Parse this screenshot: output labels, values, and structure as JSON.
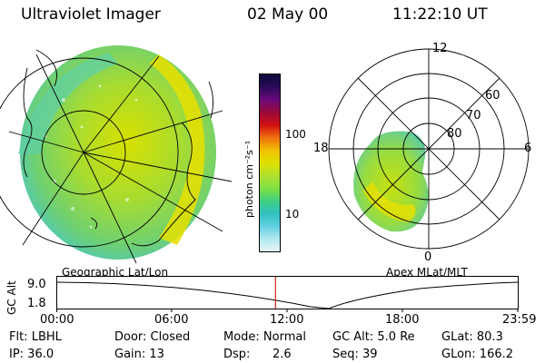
{
  "header": {
    "instrument": "Ultraviolet Imager",
    "date": "02 May 00",
    "time": "11:22:10 UT"
  },
  "left_panel": {
    "caption": "Geographic Lat/Lon"
  },
  "right_panel": {
    "caption": "Apex MLat/MLT",
    "mlt_labels": {
      "top": "12",
      "left": "18",
      "right": "6",
      "bottom": "0"
    },
    "lat_labels": [
      "60",
      "70",
      "80"
    ]
  },
  "colorbar": {
    "unit_label": "photon cm⁻²s⁻¹",
    "ticks": [
      "100",
      "10"
    ],
    "colors": [
      "#0a0a3a",
      "#2a0a5a",
      "#6a0a7a",
      "#9a0a3a",
      "#d01010",
      "#f07010",
      "#f0c000",
      "#e0e000",
      "#b0e030",
      "#80e040",
      "#40d080",
      "#30c0c0",
      "#60d0e0",
      "#b0e8f0",
      "#e8f4f8"
    ]
  },
  "altitude_strip": {
    "axis_title": "GC Alt",
    "y_ticks": [
      "9.0",
      "1.8"
    ],
    "x_ticks": [
      "00:00",
      "06:00",
      "12:00",
      "18:00",
      "23:59"
    ],
    "current_time_fraction": 0.474
  },
  "info": {
    "filter": "Flt: LBHL",
    "ip": "IP: 36.0",
    "door": "Door: Closed",
    "gain": "Gain: 13",
    "mode": "Mode: Normal",
    "dsp_label": "Dsp:",
    "dsp_value": "2.6",
    "gc_alt": "GC Alt: 5.0 Re",
    "seq": "Seq: 39",
    "glat": "GLat: 80.3",
    "glon": "GLon: 166.2"
  }
}
